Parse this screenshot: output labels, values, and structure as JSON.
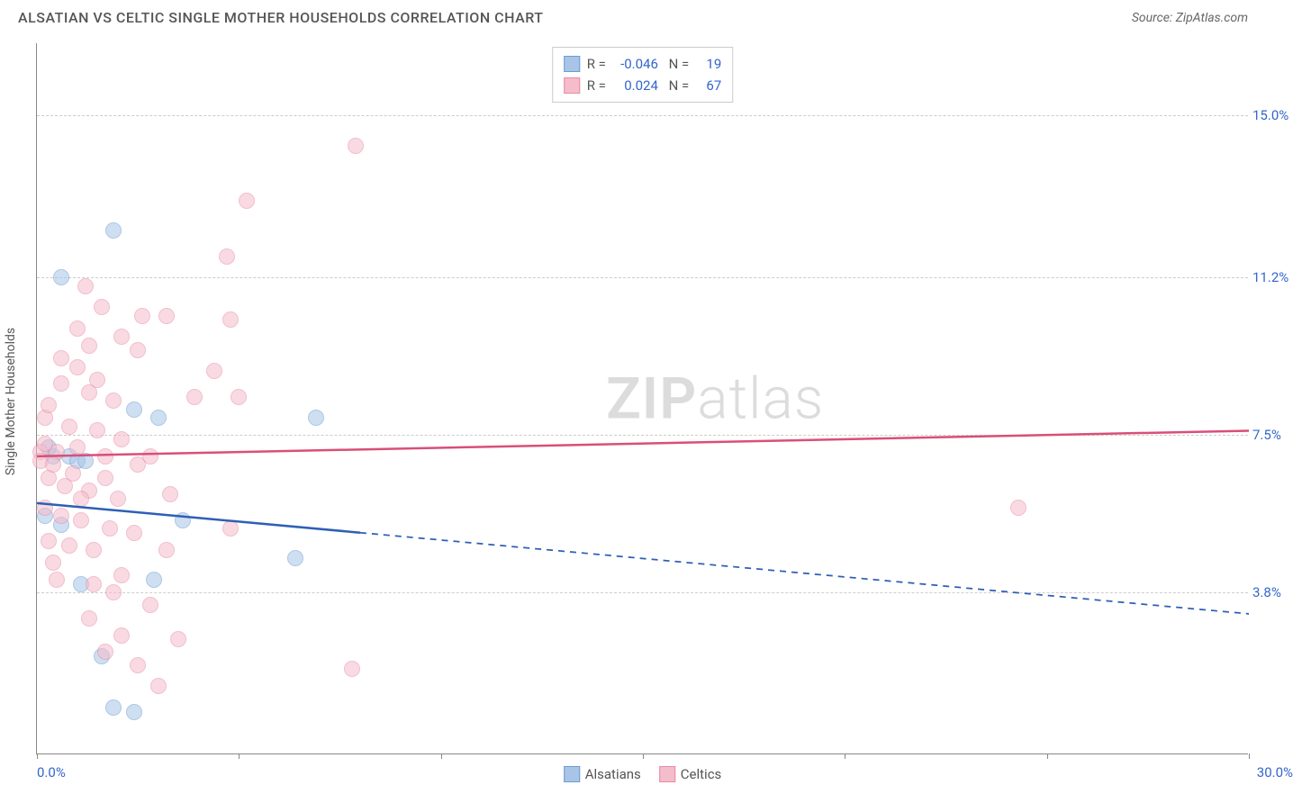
{
  "header": {
    "title": "ALSATIAN VS CELTIC SINGLE MOTHER HOUSEHOLDS CORRELATION CHART",
    "source": "Source: ZipAtlas.com"
  },
  "watermark": {
    "bold": "ZIP",
    "light": "atlas"
  },
  "chart": {
    "type": "scatter",
    "y_axis_label": "Single Mother Households",
    "background_color": "#ffffff",
    "grid_color": "#cccccc",
    "axis_color": "#888888",
    "tick_label_color": "#3366cc",
    "xlim": [
      0,
      30
    ],
    "ylim": [
      0,
      16.7
    ],
    "x_ticks": [
      0,
      5,
      10,
      15,
      20,
      25,
      30
    ],
    "x_tick_labels": {
      "min": "0.0%",
      "max": "30.0%"
    },
    "y_gridlines": [
      3.8,
      7.5,
      11.2,
      15.0
    ],
    "y_tick_labels": [
      "3.8%",
      "7.5%",
      "11.2%",
      "15.0%"
    ],
    "series": [
      {
        "name": "Alsatians",
        "marker_color": "#a8c5e8",
        "marker_border": "#6b9bd1",
        "marker_opacity": 0.55,
        "marker_size": 18,
        "line_color": "#2e5fb5",
        "line_width": 2.5,
        "R": "-0.046",
        "N": "19",
        "trend": {
          "x1": 0,
          "y1": 5.9,
          "x2": 30,
          "y2": 3.3,
          "solid_until_x": 8
        },
        "points": [
          {
            "x": 1.9,
            "y": 12.3
          },
          {
            "x": 0.6,
            "y": 11.2
          },
          {
            "x": 2.4,
            "y": 8.1
          },
          {
            "x": 3.0,
            "y": 7.9
          },
          {
            "x": 6.9,
            "y": 7.9
          },
          {
            "x": 0.4,
            "y": 7.0
          },
          {
            "x": 0.8,
            "y": 7.0
          },
          {
            "x": 1.0,
            "y": 6.9
          },
          {
            "x": 1.2,
            "y": 6.9
          },
          {
            "x": 0.2,
            "y": 5.6
          },
          {
            "x": 0.6,
            "y": 5.4
          },
          {
            "x": 3.6,
            "y": 5.5
          },
          {
            "x": 6.4,
            "y": 4.6
          },
          {
            "x": 1.1,
            "y": 4.0
          },
          {
            "x": 2.9,
            "y": 4.1
          },
          {
            "x": 1.6,
            "y": 2.3
          },
          {
            "x": 1.9,
            "y": 1.1
          },
          {
            "x": 2.4,
            "y": 1.0
          },
          {
            "x": 0.3,
            "y": 7.2
          }
        ]
      },
      {
        "name": "Celtics",
        "marker_color": "#f5bccb",
        "marker_border": "#e68ba5",
        "marker_opacity": 0.55,
        "marker_size": 18,
        "line_color": "#d94f78",
        "line_width": 2.5,
        "R": "0.024",
        "N": "67",
        "trend": {
          "x1": 0,
          "y1": 7.0,
          "x2": 30,
          "y2": 7.6,
          "solid_until_x": 30
        },
        "points": [
          {
            "x": 7.9,
            "y": 14.3
          },
          {
            "x": 5.2,
            "y": 13.0
          },
          {
            "x": 4.7,
            "y": 11.7
          },
          {
            "x": 1.2,
            "y": 11.0
          },
          {
            "x": 1.6,
            "y": 10.5
          },
          {
            "x": 2.6,
            "y": 10.3
          },
          {
            "x": 4.8,
            "y": 10.2
          },
          {
            "x": 1.0,
            "y": 10.0
          },
          {
            "x": 1.3,
            "y": 9.6
          },
          {
            "x": 2.5,
            "y": 9.5
          },
          {
            "x": 4.4,
            "y": 9.0
          },
          {
            "x": 1.0,
            "y": 9.1
          },
          {
            "x": 1.5,
            "y": 8.8
          },
          {
            "x": 0.6,
            "y": 8.7
          },
          {
            "x": 1.3,
            "y": 8.5
          },
          {
            "x": 1.9,
            "y": 8.3
          },
          {
            "x": 3.9,
            "y": 8.4
          },
          {
            "x": 5.0,
            "y": 8.4
          },
          {
            "x": 0.2,
            "y": 7.9
          },
          {
            "x": 0.8,
            "y": 7.7
          },
          {
            "x": 1.5,
            "y": 7.6
          },
          {
            "x": 2.1,
            "y": 7.4
          },
          {
            "x": 0.1,
            "y": 7.1
          },
          {
            "x": 0.5,
            "y": 7.1
          },
          {
            "x": 1.0,
            "y": 7.2
          },
          {
            "x": 1.7,
            "y": 7.0
          },
          {
            "x": 2.5,
            "y": 6.8
          },
          {
            "x": 0.3,
            "y": 6.5
          },
          {
            "x": 0.7,
            "y": 6.3
          },
          {
            "x": 1.3,
            "y": 6.2
          },
          {
            "x": 2.0,
            "y": 6.0
          },
          {
            "x": 3.3,
            "y": 6.1
          },
          {
            "x": 0.2,
            "y": 5.8
          },
          {
            "x": 0.6,
            "y": 5.6
          },
          {
            "x": 1.1,
            "y": 5.5
          },
          {
            "x": 1.8,
            "y": 5.3
          },
          {
            "x": 2.4,
            "y": 5.2
          },
          {
            "x": 4.8,
            "y": 5.3
          },
          {
            "x": 0.3,
            "y": 5.0
          },
          {
            "x": 0.8,
            "y": 4.9
          },
          {
            "x": 1.4,
            "y": 4.8
          },
          {
            "x": 3.2,
            "y": 4.8
          },
          {
            "x": 2.1,
            "y": 4.2
          },
          {
            "x": 1.4,
            "y": 4.0
          },
          {
            "x": 0.5,
            "y": 4.1
          },
          {
            "x": 1.9,
            "y": 3.8
          },
          {
            "x": 2.8,
            "y": 3.5
          },
          {
            "x": 1.3,
            "y": 3.2
          },
          {
            "x": 2.1,
            "y": 2.8
          },
          {
            "x": 3.5,
            "y": 2.7
          },
          {
            "x": 1.7,
            "y": 2.4
          },
          {
            "x": 2.5,
            "y": 2.1
          },
          {
            "x": 7.8,
            "y": 2.0
          },
          {
            "x": 3.0,
            "y": 1.6
          },
          {
            "x": 24.3,
            "y": 5.8
          },
          {
            "x": 0.1,
            "y": 6.9
          },
          {
            "x": 0.2,
            "y": 7.3
          },
          {
            "x": 0.4,
            "y": 6.8
          },
          {
            "x": 0.9,
            "y": 6.6
          },
          {
            "x": 1.1,
            "y": 6.0
          },
          {
            "x": 1.7,
            "y": 6.5
          },
          {
            "x": 2.8,
            "y": 7.0
          },
          {
            "x": 0.3,
            "y": 8.2
          },
          {
            "x": 0.6,
            "y": 9.3
          },
          {
            "x": 2.1,
            "y": 9.8
          },
          {
            "x": 3.2,
            "y": 10.3
          },
          {
            "x": 0.4,
            "y": 4.5
          }
        ]
      }
    ]
  }
}
